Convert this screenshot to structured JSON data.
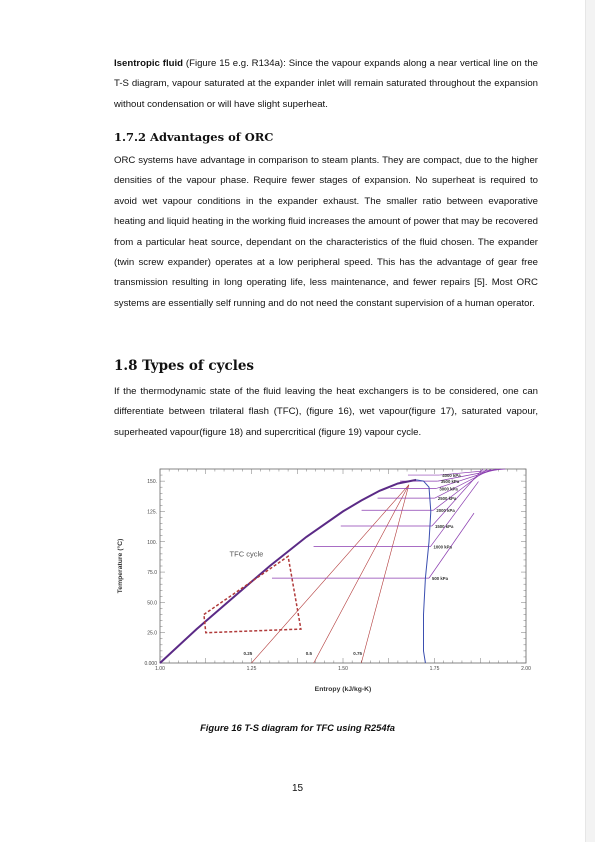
{
  "para_isentropic": {
    "term": "Isentropic fluid",
    "text": " (Figure 15 e.g. R134a): Since the vapour expands along a near vertical line on the T-S diagram, vapour saturated at the expander inlet will remain saturated throughout the expansion without condensation or will have slight superheat."
  },
  "section_advantages": {
    "heading": "1.7.2 Advantages of ORC",
    "text": "ORC systems have advantage in comparison to steam plants. They are compact, due to the higher densities of the vapour phase. Require fewer stages of expansion. No superheat is required to avoid wet vapour conditions in the expander exhaust. The smaller ratio between evaporative heating and liquid heating in the working fluid increases the amount of power that may be recovered from a particular heat source, dependant on the characteristics of the fluid chosen.  The expander (twin screw expander) operates at a low peripheral speed.  This has the advantage of gear free transmission resulting in long operating life, less maintenance, and fewer repairs [5]. Most ORC systems are essentially self running and do not need the constant supervision of a human operator."
  },
  "section_types": {
    "heading": "1.8 Types of cycles",
    "text": "If the thermodynamic state of the fluid leaving the heat exchangers is to be considered, one can differentiate between trilateral flash (TFC), (figure 16), wet vapour(figure 17), saturated vapour, superheated vapour(figure 18) and supercritical (figure 19) vapour cycle."
  },
  "figure": {
    "caption": "Figure 16 T-S diagram for TFC using R254fa"
  },
  "page_number": "15",
  "chart_data": {
    "type": "line",
    "title": "",
    "xlabel": "Entropy (kJ/kg-K)",
    "ylabel": "Temperature (°C)",
    "xlim": [
      1.0,
      2.0
    ],
    "ylim": [
      0.0,
      160.0
    ],
    "x_ticks": [
      "1.00",
      "1.25",
      "1.50",
      "1.75",
      "2.00"
    ],
    "y_ticks": [
      "0.000",
      "25.0",
      "50.0",
      "75.0",
      "100.",
      "125.",
      "150."
    ],
    "annotation": "TFC cycle",
    "saturation_dome": {
      "liquid": [
        [
          1.0,
          0.0
        ],
        [
          1.1,
          28
        ],
        [
          1.2,
          54
        ],
        [
          1.3,
          80
        ],
        [
          1.4,
          104
        ],
        [
          1.5,
          125
        ],
        [
          1.55,
          134
        ],
        [
          1.6,
          142
        ],
        [
          1.65,
          148
        ],
        [
          1.7,
          151
        ]
      ],
      "vapour": [
        [
          1.7,
          151
        ],
        [
          1.72,
          150
        ],
        [
          1.735,
          145
        ],
        [
          1.74,
          125
        ],
        [
          1.735,
          100
        ],
        [
          1.725,
          70
        ],
        [
          1.72,
          40
        ],
        [
          1.72,
          10
        ],
        [
          1.725,
          0
        ]
      ]
    },
    "isobars": [
      {
        "label": "500 kPa",
        "T_sat": 70
      },
      {
        "label": "1000 kPa",
        "T_sat": 96
      },
      {
        "label": "1500 kPa",
        "T_sat": 113
      },
      {
        "label": "2000 kPa",
        "T_sat": 126
      },
      {
        "label": "2500 kPa",
        "T_sat": 136
      },
      {
        "label": "3000 kPa",
        "T_sat": 144
      },
      {
        "label": "3500 kPa",
        "T_sat": 150
      },
      {
        "label": "4000 kPa",
        "T_sat": 155
      }
    ],
    "quality_lines": [
      {
        "label": "0.25",
        "x_at_0": 1.25
      },
      {
        "label": "0.5",
        "x_at_0": 1.42
      },
      {
        "label": "0.75",
        "x_at_0": 1.55
      }
    ],
    "tfc_cycle": {
      "x": [
        1.12,
        1.35,
        1.385,
        1.125,
        1.12
      ],
      "y": [
        40,
        88,
        28,
        25,
        40
      ]
    }
  }
}
